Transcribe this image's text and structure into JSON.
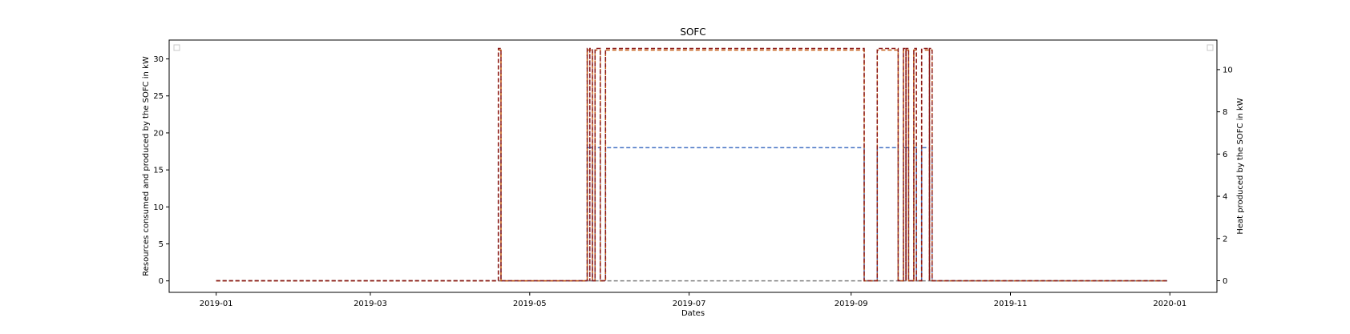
{
  "chart_data": {
    "type": "line",
    "title": "SOFC",
    "xlabel": "Dates",
    "ylabel": "Resources consumed and produced by the SOFC in kW",
    "ylabel_right": "Heat produced by the SOFC in kW",
    "x_axis_type": "date",
    "xlim": [
      "2018-12-14",
      "2020-01-19"
    ],
    "ylim": [
      -1.55,
      32.55
    ],
    "ylim_right": [
      -0.55,
      11.4
    ],
    "x_ticks": [
      "2019-01-01",
      "2019-03-01",
      "2019-05-01",
      "2019-07-01",
      "2019-09-01",
      "2019-11-01",
      "2020-01-01"
    ],
    "x_tick_labels": [
      "2019-01",
      "2019-03",
      "2019-05",
      "2019-07",
      "2019-09",
      "2019-11",
      "2020-01"
    ],
    "y_ticks": [
      0,
      5,
      10,
      15,
      20,
      25,
      30
    ],
    "y_ticks_right": [
      0,
      2,
      4,
      6,
      8,
      10
    ],
    "grid": false,
    "legend_empty_boxes": [
      "top-left",
      "top-right"
    ],
    "line_style": "dashed",
    "series": [
      {
        "axis": "left",
        "color": "#4472c4",
        "points": [
          [
            "2019-01-01",
            0
          ],
          [
            "2019-04-19",
            0
          ],
          [
            "2019-04-19",
            18
          ],
          [
            "2019-04-20",
            18
          ],
          [
            "2019-04-20",
            0
          ],
          [
            "2019-05-23",
            0
          ],
          [
            "2019-05-23",
            18
          ],
          [
            "2019-05-24",
            18
          ],
          [
            "2019-05-24",
            0
          ],
          [
            "2019-05-24",
            18
          ],
          [
            "2019-05-25",
            18
          ],
          [
            "2019-05-25",
            0
          ],
          [
            "2019-05-26",
            0
          ],
          [
            "2019-05-26",
            18
          ],
          [
            "2019-05-28",
            18
          ],
          [
            "2019-05-28",
            0
          ],
          [
            "2019-05-30",
            0
          ],
          [
            "2019-05-30",
            18
          ],
          [
            "2019-09-06",
            18
          ],
          [
            "2019-09-06",
            0
          ],
          [
            "2019-09-11",
            0
          ],
          [
            "2019-09-11",
            18
          ],
          [
            "2019-09-19",
            18
          ],
          [
            "2019-09-19",
            0
          ],
          [
            "2019-09-21",
            0
          ],
          [
            "2019-09-21",
            18
          ],
          [
            "2019-09-22",
            18
          ],
          [
            "2019-09-22",
            0
          ],
          [
            "2019-09-22",
            18
          ],
          [
            "2019-09-23",
            18
          ],
          [
            "2019-09-23",
            0
          ],
          [
            "2019-09-25",
            0
          ],
          [
            "2019-09-25",
            18
          ],
          [
            "2019-09-26",
            18
          ],
          [
            "2019-09-26",
            0
          ],
          [
            "2019-09-28",
            0
          ],
          [
            "2019-09-28",
            18
          ],
          [
            "2019-10-01",
            18
          ],
          [
            "2019-10-01",
            0
          ],
          [
            "2019-10-01",
            18
          ],
          [
            "2019-10-02",
            18
          ],
          [
            "2019-10-02",
            0
          ],
          [
            "2019-12-31",
            0
          ]
        ]
      },
      {
        "axis": "left",
        "color": "#808080",
        "points": [
          [
            "2019-01-01",
            0
          ],
          [
            "2019-12-31",
            0
          ]
        ]
      },
      {
        "axis": "left",
        "color": "#c55a11",
        "points": [
          [
            "2019-01-01",
            0
          ],
          [
            "2019-04-19",
            0
          ],
          [
            "2019-04-19",
            31.2
          ],
          [
            "2019-04-20",
            31.2
          ],
          [
            "2019-04-20",
            0
          ],
          [
            "2019-05-23",
            0
          ],
          [
            "2019-05-23",
            31.2
          ],
          [
            "2019-05-24",
            31.2
          ],
          [
            "2019-05-24",
            0
          ],
          [
            "2019-05-24",
            31.2
          ],
          [
            "2019-05-25",
            31.2
          ],
          [
            "2019-05-25",
            0
          ],
          [
            "2019-05-26",
            0
          ],
          [
            "2019-05-26",
            31.2
          ],
          [
            "2019-05-28",
            31.2
          ],
          [
            "2019-05-28",
            0
          ],
          [
            "2019-05-30",
            0
          ],
          [
            "2019-05-30",
            31.2
          ],
          [
            "2019-09-06",
            31.2
          ],
          [
            "2019-09-06",
            0
          ],
          [
            "2019-09-11",
            0
          ],
          [
            "2019-09-11",
            31.2
          ],
          [
            "2019-09-19",
            31.2
          ],
          [
            "2019-09-19",
            0
          ],
          [
            "2019-09-21",
            0
          ],
          [
            "2019-09-21",
            31.2
          ],
          [
            "2019-09-22",
            31.2
          ],
          [
            "2019-09-22",
            0
          ],
          [
            "2019-09-22",
            31.2
          ],
          [
            "2019-09-23",
            31.2
          ],
          [
            "2019-09-23",
            0
          ],
          [
            "2019-09-25",
            0
          ],
          [
            "2019-09-25",
            31.2
          ],
          [
            "2019-09-26",
            31.2
          ],
          [
            "2019-09-26",
            0
          ],
          [
            "2019-09-28",
            0
          ],
          [
            "2019-09-28",
            31.2
          ],
          [
            "2019-10-01",
            31.2
          ],
          [
            "2019-10-01",
            0
          ],
          [
            "2019-10-01",
            31.2
          ],
          [
            "2019-10-02",
            31.2
          ],
          [
            "2019-10-02",
            0
          ],
          [
            "2019-12-31",
            0
          ]
        ]
      },
      {
        "axis": "right",
        "color": "#8b1a1a",
        "points": [
          [
            "2019-01-01",
            0
          ],
          [
            "2019-04-19",
            0
          ],
          [
            "2019-04-19",
            11
          ],
          [
            "2019-04-20",
            11
          ],
          [
            "2019-04-20",
            0
          ],
          [
            "2019-05-23",
            0
          ],
          [
            "2019-05-23",
            11
          ],
          [
            "2019-05-24",
            11
          ],
          [
            "2019-05-24",
            0
          ],
          [
            "2019-05-24",
            11
          ],
          [
            "2019-05-25",
            11
          ],
          [
            "2019-05-25",
            0
          ],
          [
            "2019-05-26",
            0
          ],
          [
            "2019-05-26",
            11
          ],
          [
            "2019-05-28",
            11
          ],
          [
            "2019-05-28",
            0
          ],
          [
            "2019-05-30",
            0
          ],
          [
            "2019-05-30",
            11
          ],
          [
            "2019-09-06",
            11
          ],
          [
            "2019-09-06",
            0
          ],
          [
            "2019-09-11",
            0
          ],
          [
            "2019-09-11",
            11
          ],
          [
            "2019-09-19",
            11
          ],
          [
            "2019-09-19",
            0
          ],
          [
            "2019-09-21",
            0
          ],
          [
            "2019-09-21",
            11
          ],
          [
            "2019-09-22",
            11
          ],
          [
            "2019-09-22",
            0
          ],
          [
            "2019-09-22",
            11
          ],
          [
            "2019-09-23",
            11
          ],
          [
            "2019-09-23",
            0
          ],
          [
            "2019-09-25",
            0
          ],
          [
            "2019-09-25",
            11
          ],
          [
            "2019-09-26",
            11
          ],
          [
            "2019-09-26",
            0
          ],
          [
            "2019-09-28",
            0
          ],
          [
            "2019-09-28",
            11
          ],
          [
            "2019-10-01",
            11
          ],
          [
            "2019-10-01",
            0
          ],
          [
            "2019-10-01",
            11
          ],
          [
            "2019-10-02",
            11
          ],
          [
            "2019-10-02",
            0
          ],
          [
            "2019-12-31",
            0
          ]
        ]
      }
    ]
  }
}
